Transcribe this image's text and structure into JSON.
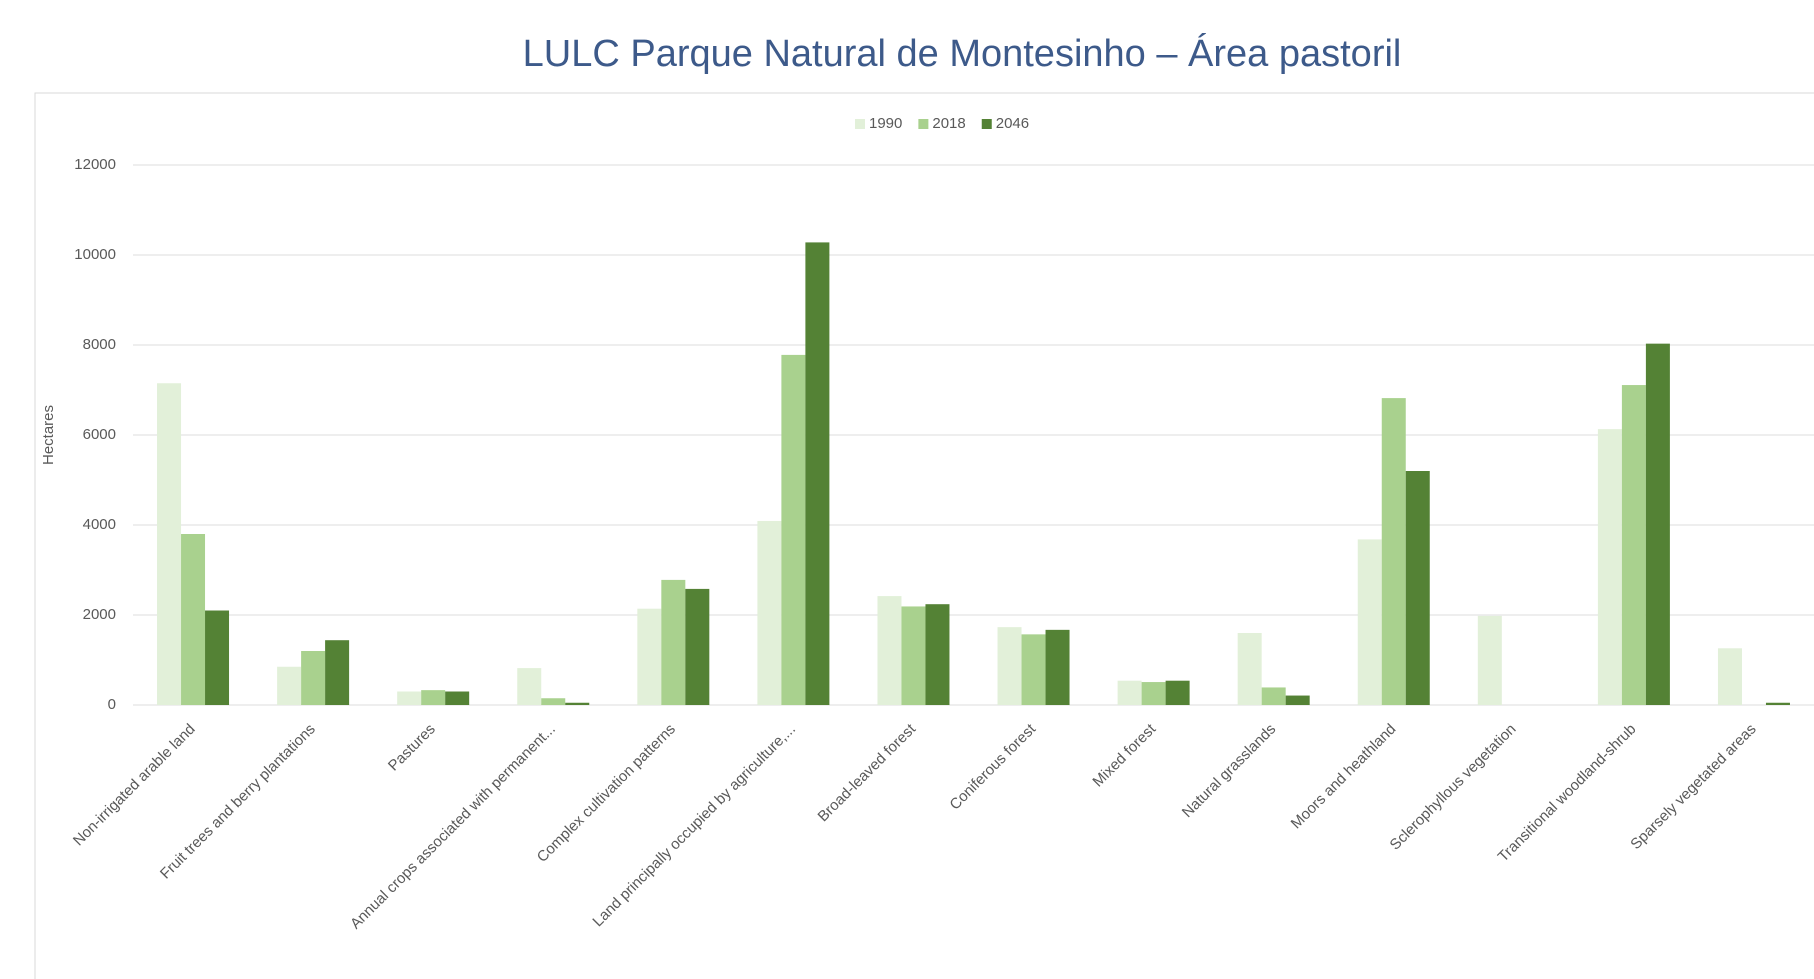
{
  "chart_data": {
    "type": "bar",
    "title": "LULC Parque Natural de Montesinho – Área pastoril",
    "y_label": "Hectares",
    "categories": [
      "Non-irrigated arable land",
      "Fruit trees and berry plantations",
      "Pastures",
      "Annual crops associated with permanent...",
      "Complex cultivation patterns",
      "Land principally occupied by agriculture,...",
      "Broad-leaved forest",
      "Coniferous forest",
      "Mixed forest",
      "Natural grasslands",
      "Moors and heathland",
      "Sclerophyllous vegetation",
      "Transitional woodland-shrub",
      "Sparsely vegetated areas"
    ],
    "series": [
      {
        "name": "1990",
        "color": "#e2f0d9",
        "values": [
          7150,
          850,
          300,
          820,
          2140,
          4090,
          2420,
          1730,
          540,
          1600,
          3680,
          1980,
          6130,
          1260
        ]
      },
      {
        "name": "2018",
        "color": "#a9d18e",
        "values": [
          3800,
          1200,
          330,
          150,
          2780,
          7780,
          2190,
          1570,
          510,
          390,
          6820,
          0,
          7110,
          0
        ]
      },
      {
        "name": "2046",
        "color": "#548235",
        "values": [
          2100,
          1440,
          300,
          50,
          2580,
          10280,
          2240,
          1670,
          540,
          210,
          5200,
          0,
          8030,
          50
        ]
      }
    ],
    "ylim": [
      0,
      12000
    ],
    "yticks": [
      0,
      2000,
      4000,
      6000,
      8000,
      10000,
      12000
    ],
    "grid": true,
    "legend": "top"
  }
}
